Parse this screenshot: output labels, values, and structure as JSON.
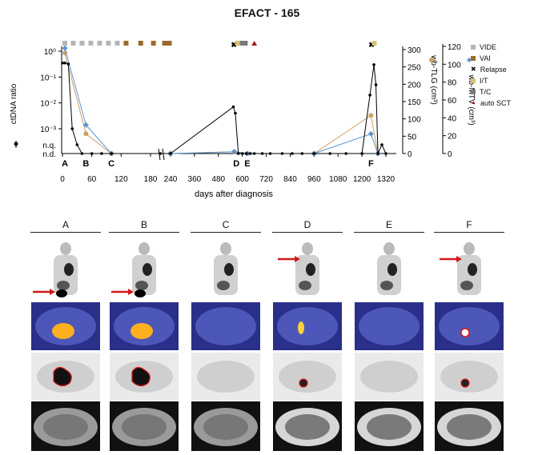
{
  "title": "EFACT - 165",
  "legend": [
    {
      "label": "VIDE",
      "color": "#b5b5b5",
      "shape": "square"
    },
    {
      "label": "VAI",
      "color": "#9a6a2a",
      "shape": "square"
    },
    {
      "label": "Relapse",
      "color": "#000000",
      "shape": "cross"
    },
    {
      "label": "I/T",
      "color": "#d8c27a",
      "shape": "square"
    },
    {
      "label": "T/C",
      "color": "#7a7a7a",
      "shape": "square"
    },
    {
      "label": "auto SCT",
      "color": "#a11c1c",
      "shape": "triangle"
    }
  ],
  "chart_data": {
    "type": "line",
    "xlabel": "days after diagnosis",
    "x_ticks_left": [
      0,
      60,
      120,
      180
    ],
    "x_ticks_right": [
      240,
      360,
      480,
      600,
      720,
      840,
      960,
      1080,
      1200,
      1320
    ],
    "left_axis": {
      "label": "ctDNA ratio",
      "scale": "log",
      "ticks": [
        "10⁰",
        "10⁻¹",
        "10⁻²",
        "10⁻³"
      ],
      "extra_labels": [
        "n.q.",
        "n.d."
      ]
    },
    "right_axis_1": {
      "label": "wb-TLG (cm³)",
      "ticks": [
        0,
        50,
        100,
        150,
        200,
        250,
        300
      ],
      "ylim": [
        0,
        300
      ]
    },
    "right_axis_2": {
      "label": "wb-MTV (cm³)",
      "ticks": [
        0,
        20,
        40,
        60,
        80,
        100,
        120
      ],
      "ylim": [
        0,
        120
      ]
    },
    "timepoints": [
      "A",
      "B",
      "C",
      "D",
      "E",
      "F"
    ],
    "timepoint_days": [
      5,
      48,
      100,
      570,
      625,
      1245
    ],
    "series": [
      {
        "name": "ctDNA ratio",
        "color": "#000000",
        "x": [
          0,
          5,
          12,
          20,
          30,
          40,
          60,
          80,
          100,
          200,
          240,
          555,
          565,
          580,
          600,
          620,
          640,
          660,
          700,
          740,
          800,
          850,
          900,
          960,
          1040,
          1120,
          1200,
          1240,
          1260,
          1270,
          1280,
          1300,
          1320
        ],
        "y": [
          0.35,
          0.35,
          0.32,
          0.001,
          "n.q.",
          "n.d.",
          "n.d.",
          "n.d.",
          "n.d.",
          "n.d.",
          "n.d.",
          0.007,
          0.004,
          "n.d.",
          "n.d.",
          "n.d.",
          "n.d.",
          "n.d.",
          "n.d.",
          "n.d.",
          "n.d.",
          "n.d.",
          "n.d.",
          "n.d.",
          "n.d.",
          "n.d.",
          "n.d.",
          0.02,
          0.3,
          0.05,
          "n.d.",
          "n.q.",
          "n.d."
        ]
      },
      {
        "name": "wb-TLG",
        "color": "#d1a05f",
        "x": [
          5,
          48,
          100,
          240,
          560,
          625,
          960,
          1245,
          1280
        ],
        "y": [
          290,
          57,
          0,
          0,
          5,
          0,
          0,
          110,
          0
        ]
      },
      {
        "name": "wb-MTV",
        "color": "#5b95d3",
        "x": [
          5,
          48,
          100,
          240,
          560,
          625,
          960,
          1245,
          1280
        ],
        "y": [
          118,
          32,
          0,
          0,
          2,
          0,
          0,
          22,
          0
        ]
      }
    ],
    "treatments": [
      {
        "label": "VIDE",
        "days": [
          5,
          22,
          40,
          58,
          76,
          94,
          112
        ]
      },
      {
        "label": "VAI",
        "days": [
          130,
          160,
          186
        ]
      },
      {
        "label": "VAI",
        "days": [
          210,
          218,
          226,
          234
        ]
      },
      {
        "label": "Relapse",
        "days": [
          558
        ]
      },
      {
        "label": "I/T",
        "days": [
          575,
          585
        ]
      },
      {
        "label": "T/C",
        "days": [
          600,
          615
        ]
      },
      {
        "label": "auto SCT",
        "days": [
          660
        ]
      },
      {
        "label": "Relapse",
        "days": [
          1248
        ]
      },
      {
        "label": "I/T",
        "days": [
          1262
        ]
      }
    ]
  },
  "panels": {
    "labels": [
      "A",
      "B",
      "C",
      "D",
      "E",
      "F"
    ]
  }
}
